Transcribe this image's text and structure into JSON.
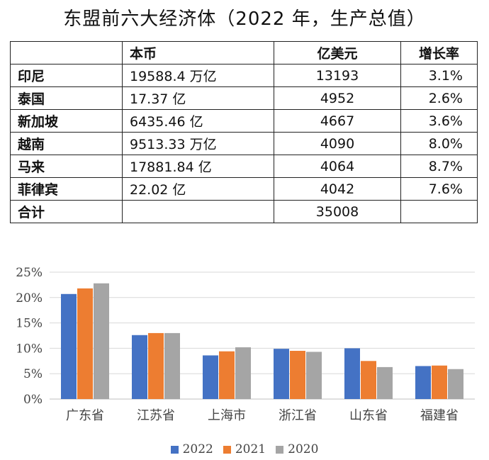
{
  "title": "东盟前六大经济体（2022 年，生产总值）",
  "table": {
    "headers": [
      "",
      "本币",
      "亿美元",
      "增长率"
    ],
    "rows": [
      [
        "印尼",
        "19588.4 万亿",
        "13193",
        "3.1%"
      ],
      [
        "泰国",
        "17.37 亿",
        "4952",
        "2.6%"
      ],
      [
        "新加坡",
        "6435.46 亿",
        "4667",
        "3.6%"
      ],
      [
        "越南",
        "9513.33 万亿",
        "4090",
        "8.0%"
      ],
      [
        "马来",
        "17881.84 亿",
        "4064",
        "8.7%"
      ],
      [
        "菲律宾",
        "22.02 亿",
        "4042",
        "7.6%"
      ],
      [
        "合计",
        "",
        "35008",
        ""
      ]
    ]
  },
  "chart_data": {
    "type": "bar",
    "categories": [
      "广东省",
      "江苏省",
      "上海市",
      "浙江省",
      "山东省",
      "福建省"
    ],
    "series": [
      {
        "name": "2022",
        "color": "#4472C4",
        "values": [
          20.7,
          12.6,
          8.6,
          9.9,
          10.0,
          6.5
        ]
      },
      {
        "name": "2021",
        "color": "#ED7D31",
        "values": [
          21.8,
          13.0,
          9.4,
          9.5,
          7.5,
          6.6
        ]
      },
      {
        "name": "2020",
        "color": "#A5A5A5",
        "values": [
          22.8,
          13.0,
          10.2,
          9.3,
          6.3,
          5.9
        ]
      }
    ],
    "yticks": [
      "0%",
      "5%",
      "10%",
      "15%",
      "20%",
      "25%"
    ],
    "ylim": [
      0,
      25
    ],
    "grid": true,
    "legend_position": "bottom"
  }
}
